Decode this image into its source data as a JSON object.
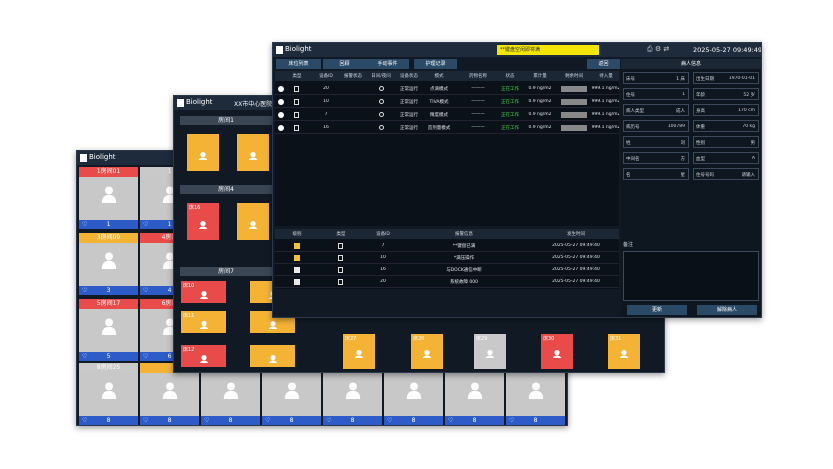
{
  "back_window": {
    "brand": "Biolight",
    "cards": [
      {
        "title": "1房间01",
        "status": "red",
        "count": "1"
      },
      {
        "title": "1",
        "status": "gray",
        "count": "1"
      },
      {
        "title": "3房间09",
        "status": "orange",
        "count": "3"
      },
      {
        "title": "4房间",
        "status": "red",
        "count": "4"
      },
      {
        "title": "5房间17",
        "status": "red",
        "count": "5"
      },
      {
        "title": "6房间",
        "status": "red",
        "count": "6"
      },
      {
        "title": "8房间25",
        "status": "gray",
        "count": "8"
      },
      {
        "status": "orange",
        "count": "8"
      },
      {
        "status": "gray",
        "count": "8"
      },
      {
        "status": "gray",
        "count": "8"
      },
      {
        "status": "gray",
        "count": "8"
      },
      {
        "status": "gray",
        "count": "8"
      },
      {
        "status": "gray",
        "count": "8"
      },
      {
        "status": "gray",
        "count": "8"
      }
    ]
  },
  "middle_window": {
    "brand": "Biolight",
    "hospital": "XX市中心医院",
    "rooms": [
      {
        "name": "房间1",
        "beds": [
          {
            "status": "orange"
          },
          {
            "status": "orange"
          }
        ]
      },
      {
        "name": "房间4",
        "beds": [
          {
            "bed": "床16",
            "status": "red"
          },
          {
            "status": "orange"
          }
        ]
      },
      {
        "name": "房间7",
        "beds": [
          {
            "bed": "床10",
            "status": "red"
          },
          {
            "status": "orange"
          },
          {
            "bed": "床11",
            "status": "orange"
          },
          {
            "status": "orange"
          },
          {
            "bed": "床12",
            "status": "red"
          },
          {
            "status": "orange"
          }
        ]
      }
    ],
    "strip": [
      {
        "bed": "床27",
        "status": "orange"
      },
      {
        "bed": "床28",
        "status": "orange"
      },
      {
        "bed": "床29",
        "status": "gray"
      },
      {
        "bed": "床30",
        "status": "red"
      },
      {
        "bed": "床31",
        "status": "orange"
      }
    ]
  },
  "front_window": {
    "brand": "Biolight",
    "alert": "**键盘空闲即将满",
    "time": "2025-05-27 09:49:49",
    "buttons": [
      "床位列表",
      "回顾",
      "手动事件",
      "护理记录"
    ],
    "back_button": "返回",
    "pump_table": {
      "headers": [
        "类型",
        "设备ID",
        "报警状态",
        "日间/夜间",
        "设备状态",
        "模式",
        "药物名称",
        "状态",
        "累计量",
        "剩余时间",
        "待入量"
      ],
      "rows": [
        [
          "20",
          "正常运行",
          "点滴模式",
          "———",
          "正在工作",
          "0.9 ng/m2",
          "999.1 ng/m2"
        ],
        [
          "10",
          "正常运行",
          "TIVA模式",
          "———",
          "正在工作",
          "0.9 ng/m2",
          "999.1 ng/m2"
        ],
        [
          "7",
          "正常运行",
          "精度模式",
          "———",
          "正在工作",
          "0.9 ng/m2",
          "999.1 ng/m2"
        ],
        [
          "16",
          "正常运行",
          "首剂量模式",
          "———",
          "正在工作",
          "0.9 ng/m2",
          "999.1 ng/m2"
        ]
      ]
    },
    "alarm_table": {
      "headers": [
        "级别",
        "类型",
        "设备ID",
        "报警信息",
        "发生时间"
      ],
      "rows": [
        {
          "level": "yellow",
          "device": "7",
          "message": "**键盘已满",
          "time": "2025-05-27 09:49:40"
        },
        {
          "level": "yellow",
          "device": "10",
          "message": "*满压操作",
          "time": "2025-05-27 09:49:40"
        },
        {
          "level": "white",
          "device": "16",
          "message": "与DOCK通信中断",
          "time": "2025-05-27 09:49:40"
        },
        {
          "level": "white",
          "device": "20",
          "message": "系统故障 000",
          "time": "2025-05-27 09:49:40"
        }
      ]
    },
    "patient": {
      "title": "病人信息",
      "fields": [
        [
          "床号",
          "1 床"
        ],
        [
          "出生日期",
          "1970-01-01"
        ],
        [
          "住号",
          "1"
        ],
        [
          "年龄",
          "52 岁"
        ],
        [
          "病人类型",
          "成人"
        ],
        [
          "身高",
          "170 cm"
        ],
        [
          "病历号",
          "100789"
        ],
        [
          "体重",
          "70 kg"
        ],
        [
          "姓",
          "刘"
        ],
        [
          "性别",
          "男"
        ],
        [
          "中间名",
          "方"
        ],
        [
          "血型",
          "A"
        ],
        [
          "名",
          "星"
        ],
        [
          "住号号码",
          "请输入"
        ]
      ],
      "note_label": "备注",
      "update": "更新",
      "discharge": "解除病人"
    }
  }
}
